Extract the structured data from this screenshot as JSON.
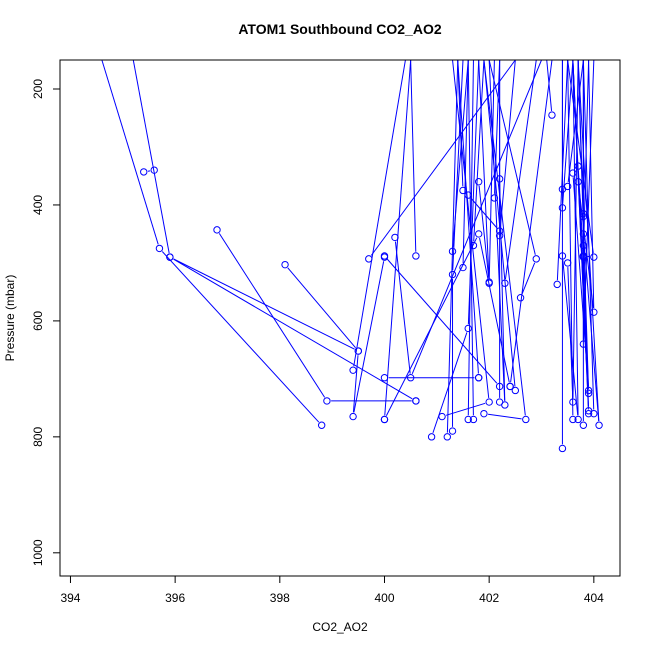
{
  "chart_data": {
    "type": "line",
    "title": "ATOM1 Southbound CO2_AO2",
    "xlabel": "CO2_AO2",
    "ylabel": "Pressure (mbar)",
    "xlim": [
      393.8,
      404.5
    ],
    "ylim": [
      1040,
      150
    ],
    "y_inverted": true,
    "x_ticks": [
      394,
      396,
      398,
      400,
      402,
      404
    ],
    "y_ticks": [
      200,
      400,
      600,
      800,
      1000
    ],
    "grid": false,
    "legend": "none",
    "series_color": "#0000ff",
    "series": [
      {
        "points": [
          [
            394.6,
            150
          ],
          [
            395.7,
            475
          ],
          [
            398.8,
            780
          ]
        ]
      },
      {
        "points": [
          [
            395.2,
            150
          ],
          [
            395.9,
            490
          ],
          [
            400.6,
            738
          ]
        ]
      },
      {
        "points": [
          [
            395.4,
            343
          ],
          [
            395.6,
            340
          ]
        ]
      },
      {
        "points": [
          [
            395.9,
            490
          ],
          [
            399.5,
            652
          ],
          [
            399.4,
            765
          ],
          [
            400.0,
            490
          ]
        ]
      },
      {
        "points": [
          [
            396.8,
            443
          ],
          [
            398.9,
            738
          ],
          [
            400.6,
            738
          ]
        ]
      },
      {
        "points": [
          [
            398.1,
            503
          ],
          [
            399.5,
            652
          ]
        ]
      },
      {
        "points": [
          [
            399.4,
            685
          ],
          [
            400.4,
            150
          ]
        ]
      },
      {
        "points": [
          [
            399.7,
            493
          ],
          [
            402.5,
            150
          ]
        ]
      },
      {
        "points": [
          [
            400.0,
            698
          ],
          [
            401.8,
            698
          ]
        ]
      },
      {
        "points": [
          [
            400.0,
            488
          ],
          [
            402.2,
            713
          ]
        ]
      },
      {
        "points": [
          [
            400.0,
            770
          ],
          [
            400.5,
            150
          ],
          [
            400.6,
            488
          ]
        ]
      },
      {
        "points": [
          [
            400.2,
            456
          ],
          [
            400.5,
            698
          ],
          [
            403.0,
            150
          ]
        ]
      },
      {
        "points": [
          [
            400.0,
            770
          ],
          [
            401.8,
            450
          ],
          [
            402.4,
            713
          ]
        ]
      },
      {
        "points": [
          [
            400.9,
            800
          ],
          [
            401.6,
            613
          ],
          [
            401.8,
            150
          ]
        ]
      },
      {
        "points": [
          [
            401.1,
            765
          ],
          [
            402.0,
            740
          ],
          [
            401.3,
            150
          ]
        ]
      },
      {
        "points": [
          [
            401.2,
            800
          ],
          [
            401.4,
            150
          ]
        ]
      },
      {
        "points": [
          [
            401.3,
            790
          ],
          [
            401.3,
            520
          ],
          [
            401.5,
            150
          ]
        ]
      },
      {
        "points": [
          [
            401.3,
            480
          ],
          [
            401.6,
            150
          ],
          [
            401.7,
            770
          ]
        ]
      },
      {
        "points": [
          [
            401.5,
            375
          ],
          [
            401.4,
            150
          ],
          [
            401.8,
            698
          ]
        ]
      },
      {
        "points": [
          [
            401.5,
            508
          ],
          [
            401.6,
            150
          ]
        ]
      },
      {
        "points": [
          [
            401.6,
            383
          ],
          [
            402.2,
            445
          ],
          [
            402.2,
            150
          ]
        ]
      },
      {
        "points": [
          [
            401.6,
            770
          ],
          [
            401.7,
            150
          ]
        ]
      },
      {
        "points": [
          [
            401.7,
            470
          ],
          [
            401.9,
            150
          ],
          [
            402.5,
            720
          ]
        ]
      },
      {
        "points": [
          [
            401.8,
            360
          ],
          [
            402.0,
            533
          ],
          [
            401.8,
            150
          ]
        ]
      },
      {
        "points": [
          [
            401.9,
            760
          ],
          [
            402.7,
            770
          ],
          [
            401.9,
            150
          ]
        ]
      },
      {
        "points": [
          [
            402.0,
            535
          ],
          [
            402.1,
            150
          ]
        ]
      },
      {
        "points": [
          [
            402.1,
            388
          ],
          [
            402.2,
            150
          ],
          [
            402.2,
            740
          ]
        ]
      },
      {
        "points": [
          [
            402.2,
            355
          ],
          [
            402.3,
            745
          ],
          [
            402.0,
            150
          ]
        ]
      },
      {
        "points": [
          [
            402.2,
            453
          ],
          [
            402.5,
            150
          ]
        ]
      },
      {
        "points": [
          [
            402.3,
            535
          ],
          [
            402.9,
            150
          ]
        ]
      },
      {
        "points": [
          [
            402.6,
            560
          ],
          [
            402.9,
            493
          ],
          [
            402.0,
            150
          ]
        ]
      },
      {
        "points": [
          [
            402.4,
            713
          ],
          [
            403.2,
            150
          ]
        ]
      },
      {
        "points": [
          [
            403.2,
            245
          ],
          [
            403.1,
            150
          ]
        ]
      },
      {
        "points": [
          [
            403.3,
            537
          ],
          [
            403.5,
            150
          ],
          [
            403.6,
            770
          ]
        ]
      },
      {
        "points": [
          [
            403.4,
            373
          ],
          [
            403.4,
            150
          ],
          [
            403.4,
            820
          ]
        ]
      },
      {
        "points": [
          [
            403.4,
            405
          ],
          [
            403.6,
            150
          ],
          [
            403.9,
            760
          ]
        ]
      },
      {
        "points": [
          [
            403.4,
            488
          ],
          [
            403.7,
            770
          ],
          [
            403.6,
            150
          ]
        ]
      },
      {
        "points": [
          [
            403.5,
            500
          ],
          [
            403.6,
            740
          ],
          [
            403.7,
            150
          ]
        ]
      },
      {
        "points": [
          [
            403.5,
            368
          ],
          [
            403.8,
            150
          ],
          [
            404.0,
            760
          ]
        ]
      },
      {
        "points": [
          [
            403.6,
            345
          ],
          [
            403.9,
            720
          ],
          [
            403.6,
            150
          ]
        ]
      },
      {
        "points": [
          [
            403.7,
            360
          ],
          [
            404.0,
            585
          ],
          [
            403.9,
            150
          ]
        ]
      },
      {
        "points": [
          [
            403.7,
            333
          ],
          [
            403.8,
            488
          ],
          [
            403.9,
            150
          ]
        ]
      },
      {
        "points": [
          [
            403.8,
            415
          ],
          [
            403.7,
            150
          ],
          [
            403.9,
            725
          ]
        ]
      },
      {
        "points": [
          [
            403.8,
            450
          ],
          [
            404.1,
            780
          ],
          [
            403.7,
            150
          ]
        ]
      },
      {
        "points": [
          [
            403.8,
            420
          ],
          [
            403.8,
            150
          ],
          [
            403.8,
            780
          ]
        ]
      },
      {
        "points": [
          [
            403.8,
            470
          ],
          [
            403.8,
            640
          ],
          [
            404.0,
            150
          ]
        ]
      },
      {
        "points": [
          [
            403.8,
            488
          ],
          [
            404.0,
            490
          ],
          [
            403.5,
            150
          ]
        ]
      },
      {
        "points": [
          [
            403.8,
            490
          ],
          [
            403.9,
            755
          ],
          [
            403.6,
            150
          ]
        ]
      }
    ]
  }
}
